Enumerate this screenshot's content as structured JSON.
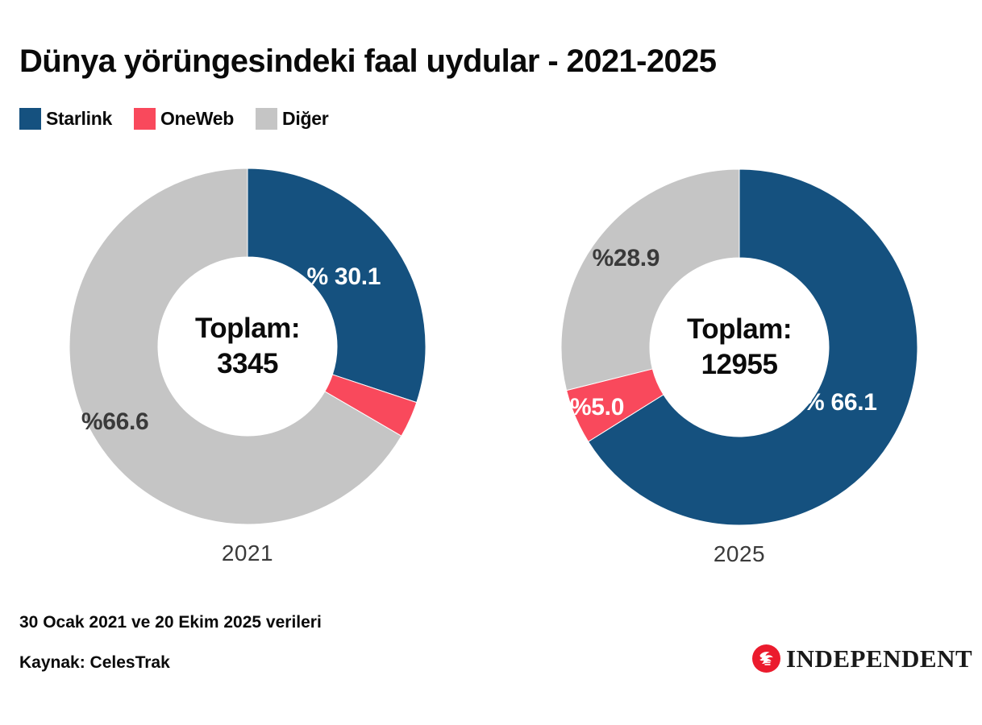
{
  "title": "Dünya yörüngesindeki faal uydular - 2021-2025",
  "colors": {
    "starlink_blue": "#15517F",
    "oneweb_red": "#F9495C",
    "other_gray": "#C5C5C5",
    "label_dark": "#3A3A3A",
    "label_light": "#FFFFFF",
    "logo_red": "#EB1B2D"
  },
  "legend": [
    {
      "label": "Starlink",
      "color": "#15517F"
    },
    {
      "label": "OneWeb",
      "color": "#F9495C"
    },
    {
      "label": "Diğer",
      "color": "#C5C5C5"
    }
  ],
  "chart_data": [
    {
      "type": "pie",
      "subtype": "donut",
      "year": "2021",
      "total_label": "Toplam:",
      "total_value": "3345",
      "slices": [
        {
          "name": "Starlink",
          "value": 30.1,
          "color": "#15517F",
          "label": "% 30.1",
          "label_color": "#FFFFFF",
          "label_r": 0.66
        },
        {
          "name": "OneWeb",
          "value": 3.3,
          "color": "#F9495C",
          "label": "",
          "label_color": "",
          "label_r": 0
        },
        {
          "name": "Diğer",
          "value": 66.6,
          "color": "#C5C5C5",
          "label": "%66.6",
          "label_color": "#3A3A3A",
          "label_r": 0.85
        }
      ]
    },
    {
      "type": "pie",
      "subtype": "donut",
      "year": "2025",
      "total_label": "Toplam:",
      "total_value": "12955",
      "slices": [
        {
          "name": "Starlink",
          "value": 66.1,
          "color": "#15517F",
          "label": "% 66.1",
          "label_color": "#FFFFFF",
          "label_r": 0.64
        },
        {
          "name": "OneWeb",
          "value": 5.0,
          "color": "#F9495C",
          "label": "%5.0",
          "label_color": "#FFFFFF",
          "label_r": 0.86
        },
        {
          "name": "Diğer",
          "value": 28.9,
          "color": "#C5C5C5",
          "label": "%28.9",
          "label_color": "#3A3A3A",
          "label_r": 0.8
        }
      ]
    }
  ],
  "footnote": "30 Ocak 2021 ve 20 Ekim 2025 verileri",
  "source": "Kaynak: CelesTrak",
  "logo": {
    "text": "INDEPENDENT"
  }
}
